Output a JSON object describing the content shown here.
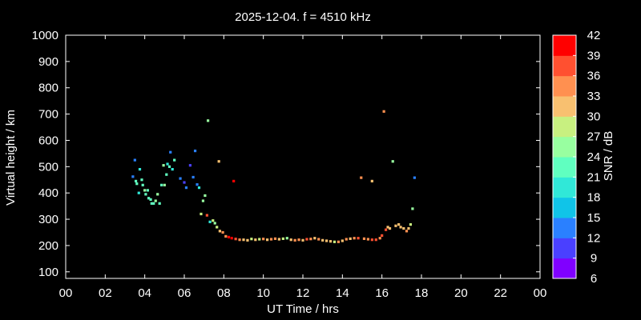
{
  "chart_data": {
    "type": "scatter",
    "title": "2025-12-04. f = 4510 kHz",
    "xlabel": "UT Time / hrs",
    "ylabel": "Virtual height / km",
    "xlim": [
      0,
      24
    ],
    "ylim": [
      75,
      1000
    ],
    "xticks": [
      "00",
      "02",
      "04",
      "06",
      "08",
      "10",
      "12",
      "14",
      "16",
      "18",
      "20",
      "22",
      "00"
    ],
    "yticks": [
      100,
      200,
      300,
      400,
      500,
      600,
      700,
      800,
      900,
      1000
    ],
    "grid": false,
    "colorbar": {
      "label": "SNR / dB",
      "min": 6,
      "max": 42,
      "ticks": [
        6,
        9,
        12,
        15,
        18,
        21,
        24,
        27,
        30,
        33,
        36,
        39,
        42
      ],
      "colors": [
        "#8000ff",
        "#4a40ff",
        "#2a80ff",
        "#10c4e8",
        "#30e8d8",
        "#60ffc0",
        "#98ffa0",
        "#c8f080",
        "#f8c070",
        "#ff9050",
        "#ff5030",
        "#ff0000"
      ]
    },
    "points": [
      {
        "x": 3.4,
        "y": 462,
        "snr": 12
      },
      {
        "x": 3.5,
        "y": 525,
        "snr": 13
      },
      {
        "x": 3.55,
        "y": 445,
        "snr": 22
      },
      {
        "x": 3.6,
        "y": 435,
        "snr": 21
      },
      {
        "x": 3.7,
        "y": 400,
        "snr": 20
      },
      {
        "x": 3.75,
        "y": 490,
        "snr": 20
      },
      {
        "x": 3.85,
        "y": 450,
        "snr": 22
      },
      {
        "x": 3.9,
        "y": 430,
        "snr": 23
      },
      {
        "x": 4.0,
        "y": 410,
        "snr": 24
      },
      {
        "x": 4.05,
        "y": 395,
        "snr": 22
      },
      {
        "x": 4.15,
        "y": 410,
        "snr": 21
      },
      {
        "x": 4.2,
        "y": 380,
        "snr": 23
      },
      {
        "x": 4.3,
        "y": 375,
        "snr": 22
      },
      {
        "x": 4.35,
        "y": 360,
        "snr": 23
      },
      {
        "x": 4.45,
        "y": 360,
        "snr": 21
      },
      {
        "x": 4.55,
        "y": 370,
        "snr": 24
      },
      {
        "x": 4.65,
        "y": 395,
        "snr": 24
      },
      {
        "x": 4.75,
        "y": 360,
        "snr": 22
      },
      {
        "x": 4.85,
        "y": 430,
        "snr": 22
      },
      {
        "x": 4.95,
        "y": 505,
        "snr": 25
      },
      {
        "x": 5.0,
        "y": 430,
        "snr": 24
      },
      {
        "x": 5.1,
        "y": 470,
        "snr": 22
      },
      {
        "x": 5.15,
        "y": 510,
        "snr": 20
      },
      {
        "x": 5.25,
        "y": 500,
        "snr": 21
      },
      {
        "x": 5.3,
        "y": 555,
        "snr": 12
      },
      {
        "x": 5.4,
        "y": 490,
        "snr": 20
      },
      {
        "x": 5.5,
        "y": 525,
        "snr": 21
      },
      {
        "x": 5.8,
        "y": 455,
        "snr": 12
      },
      {
        "x": 6.0,
        "y": 440,
        "snr": 10
      },
      {
        "x": 6.1,
        "y": 420,
        "snr": 13
      },
      {
        "x": 6.3,
        "y": 505,
        "snr": 11
      },
      {
        "x": 6.45,
        "y": 460,
        "snr": 12
      },
      {
        "x": 6.55,
        "y": 560,
        "snr": 13
      },
      {
        "x": 6.65,
        "y": 432,
        "snr": 14
      },
      {
        "x": 6.75,
        "y": 420,
        "snr": 18
      },
      {
        "x": 6.85,
        "y": 320,
        "snr": 27
      },
      {
        "x": 6.95,
        "y": 370,
        "snr": 25
      },
      {
        "x": 7.05,
        "y": 390,
        "snr": 26
      },
      {
        "x": 7.15,
        "y": 315,
        "snr": 36
      },
      {
        "x": 7.2,
        "y": 675,
        "snr": 24
      },
      {
        "x": 7.3,
        "y": 290,
        "snr": 20
      },
      {
        "x": 7.45,
        "y": 295,
        "snr": 28
      },
      {
        "x": 7.55,
        "y": 285,
        "snr": 26
      },
      {
        "x": 7.65,
        "y": 270,
        "snr": 29
      },
      {
        "x": 7.75,
        "y": 520,
        "snr": 31
      },
      {
        "x": 7.8,
        "y": 255,
        "snr": 30
      },
      {
        "x": 7.95,
        "y": 250,
        "snr": 33
      },
      {
        "x": 8.1,
        "y": 235,
        "snr": 34
      },
      {
        "x": 8.25,
        "y": 232,
        "snr": 39
      },
      {
        "x": 8.4,
        "y": 228,
        "snr": 40
      },
      {
        "x": 8.5,
        "y": 445,
        "snr": 42
      },
      {
        "x": 8.6,
        "y": 225,
        "snr": 36
      },
      {
        "x": 8.8,
        "y": 222,
        "snr": 34
      },
      {
        "x": 9.0,
        "y": 222,
        "snr": 32
      },
      {
        "x": 9.2,
        "y": 220,
        "snr": 30
      },
      {
        "x": 9.4,
        "y": 225,
        "snr": 28
      },
      {
        "x": 9.6,
        "y": 222,
        "snr": 31
      },
      {
        "x": 9.8,
        "y": 224,
        "snr": 29
      },
      {
        "x": 10.0,
        "y": 225,
        "snr": 33
      },
      {
        "x": 10.2,
        "y": 222,
        "snr": 30
      },
      {
        "x": 10.4,
        "y": 224,
        "snr": 34
      },
      {
        "x": 10.6,
        "y": 226,
        "snr": 33
      },
      {
        "x": 10.8,
        "y": 224,
        "snr": 31
      },
      {
        "x": 11.0,
        "y": 226,
        "snr": 27
      },
      {
        "x": 11.2,
        "y": 228,
        "snr": 24
      },
      {
        "x": 11.4,
        "y": 222,
        "snr": 30
      },
      {
        "x": 11.6,
        "y": 220,
        "snr": 34
      },
      {
        "x": 11.8,
        "y": 222,
        "snr": 33
      },
      {
        "x": 12.0,
        "y": 220,
        "snr": 31
      },
      {
        "x": 12.2,
        "y": 224,
        "snr": 36
      },
      {
        "x": 12.4,
        "y": 225,
        "snr": 34
      },
      {
        "x": 12.6,
        "y": 228,
        "snr": 30
      },
      {
        "x": 12.8,
        "y": 224,
        "snr": 33
      },
      {
        "x": 13.0,
        "y": 220,
        "snr": 32
      },
      {
        "x": 13.2,
        "y": 218,
        "snr": 30
      },
      {
        "x": 13.4,
        "y": 216,
        "snr": 31
      },
      {
        "x": 13.6,
        "y": 214,
        "snr": 29
      },
      {
        "x": 13.8,
        "y": 214,
        "snr": 33
      },
      {
        "x": 14.0,
        "y": 218,
        "snr": 30
      },
      {
        "x": 14.2,
        "y": 224,
        "snr": 34
      },
      {
        "x": 14.4,
        "y": 226,
        "snr": 32
      },
      {
        "x": 14.6,
        "y": 228,
        "snr": 34
      },
      {
        "x": 14.8,
        "y": 228,
        "snr": 36
      },
      {
        "x": 14.95,
        "y": 458,
        "snr": 33
      },
      {
        "x": 15.1,
        "y": 226,
        "snr": 34
      },
      {
        "x": 15.3,
        "y": 224,
        "snr": 35
      },
      {
        "x": 15.5,
        "y": 445,
        "snr": 31
      },
      {
        "x": 15.5,
        "y": 222,
        "snr": 37
      },
      {
        "x": 15.7,
        "y": 222,
        "snr": 36
      },
      {
        "x": 15.9,
        "y": 228,
        "snr": 34
      },
      {
        "x": 16.0,
        "y": 238,
        "snr": 37
      },
      {
        "x": 16.1,
        "y": 710,
        "snr": 33
      },
      {
        "x": 16.2,
        "y": 260,
        "snr": 36
      },
      {
        "x": 16.3,
        "y": 270,
        "snr": 32
      },
      {
        "x": 16.4,
        "y": 265,
        "snr": 31
      },
      {
        "x": 16.55,
        "y": 520,
        "snr": 24
      },
      {
        "x": 16.7,
        "y": 275,
        "snr": 32
      },
      {
        "x": 16.85,
        "y": 280,
        "snr": 30
      },
      {
        "x": 16.95,
        "y": 270,
        "snr": 31
      },
      {
        "x": 17.1,
        "y": 265,
        "snr": 32
      },
      {
        "x": 17.25,
        "y": 255,
        "snr": 33
      },
      {
        "x": 17.35,
        "y": 265,
        "snr": 31
      },
      {
        "x": 17.45,
        "y": 280,
        "snr": 29
      },
      {
        "x": 17.55,
        "y": 340,
        "snr": 24
      },
      {
        "x": 17.65,
        "y": 458,
        "snr": 12
      }
    ]
  }
}
